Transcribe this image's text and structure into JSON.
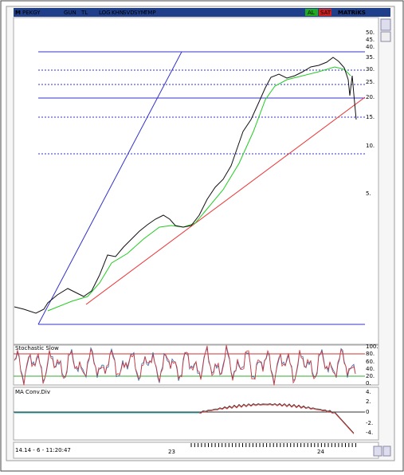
{
  "toolbar": {
    "logo": "M",
    "symbol": "PEKGY",
    "buttons": [
      "GUN",
      "TL",
      "LOG",
      "KHN",
      "SVD",
      "SYM",
      "TMP"
    ],
    "buy": "AL",
    "sell": "SAT",
    "brand": "MATRiKS"
  },
  "price_axis": {
    "labels": [
      "50.",
      "45.",
      "40.",
      "35.",
      "30.",
      "25.",
      "20.",
      "15.",
      "10.",
      "5."
    ]
  },
  "stochastic": {
    "title": "Stochastic Slow",
    "labels": [
      "100.",
      "80.",
      "60.",
      "40.",
      "20.",
      "0."
    ]
  },
  "macd": {
    "title": "MA Conv.Div",
    "labels": [
      "4.",
      "2.",
      "0",
      "-2.",
      "-4."
    ]
  },
  "status": {
    "time": "14.14 - 6 - 11:20:47",
    "years": [
      "23",
      "24"
    ]
  }
}
